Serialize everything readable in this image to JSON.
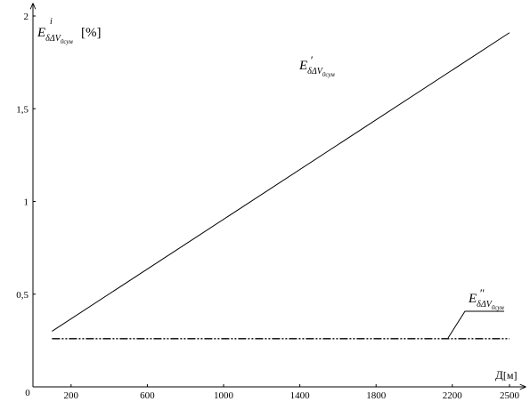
{
  "chart_data": {
    "type": "line",
    "xlim": [
      0,
      2500
    ],
    "ylim": [
      0,
      2
    ],
    "x_ticks": [
      {
        "value": 200,
        "label": "200"
      },
      {
        "value": 600,
        "label": "600"
      },
      {
        "value": 1000,
        "label": "1000"
      },
      {
        "value": 1400,
        "label": "1400"
      },
      {
        "value": 1800,
        "label": "1800"
      },
      {
        "value": 2200,
        "label": "2200"
      },
      {
        "value": 2500,
        "label": "2500"
      }
    ],
    "y_ticks": [
      {
        "value": 0.5,
        "label": "0,5"
      },
      {
        "value": 1.0,
        "label": "1"
      },
      {
        "value": 1.5,
        "label": "1,5"
      },
      {
        "value": 2.0,
        "label": "2"
      }
    ],
    "origin_label": "0",
    "xlabel": {
      "main": "Д",
      "unit": "[м]"
    },
    "ylabel": {
      "main": "E",
      "superscript": "i",
      "subscript": "δΔV",
      "sub_sub": "0сум",
      "unit": "[%]"
    },
    "grid": false,
    "legend": "none",
    "series": [
      {
        "label": {
          "main": "E",
          "superscript": "′",
          "subscript": "δΔV",
          "sub_sub": "0сум"
        },
        "style": "solid",
        "color": "#000000",
        "x": [
          100,
          2500
        ],
        "y": [
          0.3,
          1.91
        ]
      },
      {
        "label": {
          "main": "E",
          "superscript": "″",
          "subscript": "δΔV",
          "sub_sub": "0сум"
        },
        "style": "dash-dot-dot",
        "color": "#000000",
        "x": [
          100,
          2500
        ],
        "y": [
          0.26,
          0.26
        ]
      }
    ]
  }
}
